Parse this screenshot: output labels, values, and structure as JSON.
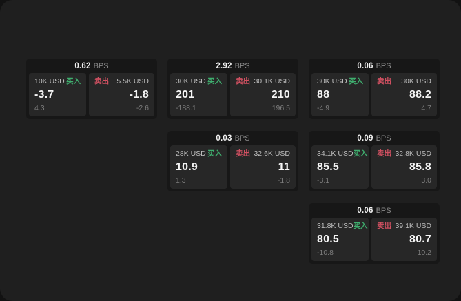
{
  "labels": {
    "bps_unit": "BPS",
    "buy": "买入",
    "sell": "卖出"
  },
  "colors": {
    "page_bg": "#1f1f1f",
    "card_bg": "#171717",
    "panel_bg": "#272727",
    "buy_accent": "#3fae6e",
    "sell_accent": "#d05061"
  },
  "cards": [
    {
      "bps": "0.62",
      "buy": {
        "amount": "10K USD",
        "price": "-3.7",
        "change": "4.3"
      },
      "sell": {
        "amount": "5.5K USD",
        "price": "-1.8",
        "change": "-2.6"
      }
    },
    {
      "bps": "2.92",
      "buy": {
        "amount": "30K USD",
        "price": "201",
        "change": "-188.1"
      },
      "sell": {
        "amount": "30.1K USD",
        "price": "210",
        "change": "196.5"
      }
    },
    {
      "bps": "0.06",
      "buy": {
        "amount": "30K USD",
        "price": "88",
        "change": "-4.9"
      },
      "sell": {
        "amount": "30K USD",
        "price": "88.2",
        "change": "4.7"
      }
    },
    {
      "bps": "0.03",
      "buy": {
        "amount": "28K USD",
        "price": "10.9",
        "change": "1.3"
      },
      "sell": {
        "amount": "32.6K USD",
        "price": "11",
        "change": "-1.8"
      }
    },
    {
      "bps": "0.09",
      "buy": {
        "amount": "34.1K USD",
        "price": "85.5",
        "change": "-3.1"
      },
      "sell": {
        "amount": "32.8K USD",
        "price": "85.8",
        "change": "3.0"
      }
    },
    {
      "bps": "0.06",
      "buy": {
        "amount": "31.8K USD",
        "price": "80.5",
        "change": "-10.8"
      },
      "sell": {
        "amount": "39.1K USD",
        "price": "80.7",
        "change": "10.2"
      }
    }
  ]
}
